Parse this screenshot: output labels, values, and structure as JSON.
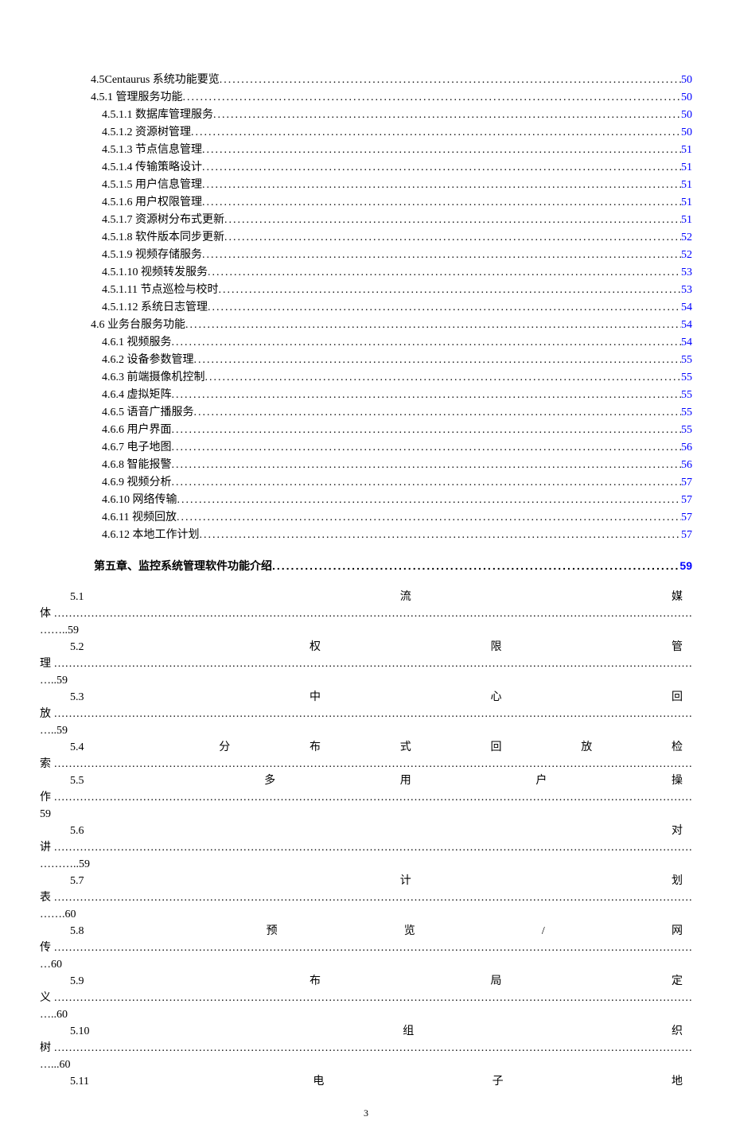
{
  "toc_block1": [
    {
      "label": "4.5Centaurus 系统功能要览",
      "page": "50",
      "indent": 1
    },
    {
      "label": "4.5.1 管理服务功能",
      "page": "50",
      "indent": 1
    },
    {
      "label": "4.5.1.1 数据库管理服务",
      "page": "50",
      "indent": 2
    },
    {
      "label": "4.5.1.2 资源树管理",
      "page": "50",
      "indent": 2
    },
    {
      "label": "4.5.1.3 节点信息管理",
      "page": "51",
      "indent": 2
    },
    {
      "label": "4.5.1.4 传输策略设计",
      "page": "51",
      "indent": 2
    },
    {
      "label": "4.5.1.5 用户信息管理",
      "page": "51",
      "indent": 2
    },
    {
      "label": "4.5.1.6 用户权限管理",
      "page": "51",
      "indent": 2
    },
    {
      "label": "4.5.1.7 资源树分布式更新",
      "page": "51",
      "indent": 2
    },
    {
      "label": "4.5.1.8 软件版本同步更新",
      "page": "52",
      "indent": 2
    },
    {
      "label": "4.5.1.9 视频存储服务",
      "page": "52",
      "indent": 2
    },
    {
      "label": "4.5.1.10 视频转发服务",
      "page": "53",
      "indent": 2
    },
    {
      "label": "4.5.1.11 节点巡检与校时",
      "page": "53",
      "indent": 2
    },
    {
      "label": "4.5.1.12 系统日志管理",
      "page": "54",
      "indent": 2
    },
    {
      "label": "4.6 业务台服务功能",
      "page": "54",
      "indent": 1
    },
    {
      "label": "4.6.1 视频服务",
      "page": "54",
      "indent": 2
    },
    {
      "label": "4.6.2 设备参数管理",
      "page": "55",
      "indent": 2
    },
    {
      "label": "4.6.3 前端摄像机控制",
      "page": "55",
      "indent": 2
    },
    {
      "label": "4.6.4 虚拟矩阵",
      "page": "55",
      "indent": 2
    },
    {
      "label": "4.6.5 语音广播服务",
      "page": "55",
      "indent": 2
    },
    {
      "label": "4.6.6 用户界面",
      "page": "55",
      "indent": 2
    },
    {
      "label": "4.6.7 电子地图",
      "page": "56",
      "indent": 2
    },
    {
      "label": "4.6.8 智能报警",
      "page": "56",
      "indent": 2
    },
    {
      "label": "4.6.9 视频分析",
      "page": "57",
      "indent": 2
    },
    {
      "label": "4.6.10 网络传输",
      "page": "57",
      "indent": 2
    },
    {
      "label": "4.6.11 视频回放",
      "page": "57",
      "indent": 2
    },
    {
      "label": "4.6.12 本地工作计划",
      "page": "57",
      "indent": 2
    }
  ],
  "chapter": {
    "label": "第五章、监控系统管理软件功能介绍",
    "page": "59"
  },
  "justified_entries": [
    {
      "num": "5.1",
      "chars": [
        "流",
        "媒"
      ],
      "tail": "体",
      "page": "……..59"
    },
    {
      "num": "5.2",
      "chars": [
        "权",
        "限",
        "管"
      ],
      "tail": "理",
      "page": "…..59"
    },
    {
      "num": "5.3",
      "chars": [
        "中",
        "心",
        "回"
      ],
      "tail": "放",
      "page": "…..59"
    },
    {
      "num": "5.4",
      "chars": [
        "分",
        "布",
        "式",
        "回",
        "放",
        "检"
      ],
      "tail": "索",
      "page_inline": "59"
    },
    {
      "num": "5.5",
      "chars": [
        "多",
        "用",
        "户",
        "操"
      ],
      "tail": "作",
      "page": "59"
    },
    {
      "num": "5.6",
      "chars": [
        "对"
      ],
      "tail": "讲",
      "page": "………..59"
    },
    {
      "num": "5.7",
      "chars": [
        "计",
        "划"
      ],
      "tail": "表",
      "page": "…….60"
    },
    {
      "num": "5.8",
      "chars": [
        "预",
        "览",
        "/",
        "网"
      ],
      "tail": "传",
      "page": "…60"
    },
    {
      "num": "5.9",
      "chars": [
        "布",
        "局",
        "定"
      ],
      "tail": "义",
      "page": "…..60"
    },
    {
      "num": "5.10",
      "chars": [
        "组",
        "织"
      ],
      "tail": "树",
      "page": "…...60"
    },
    {
      "num": "5.11",
      "chars": [
        "电",
        "子",
        "地"
      ],
      "tail": "",
      "page": ""
    }
  ],
  "footer": "3"
}
